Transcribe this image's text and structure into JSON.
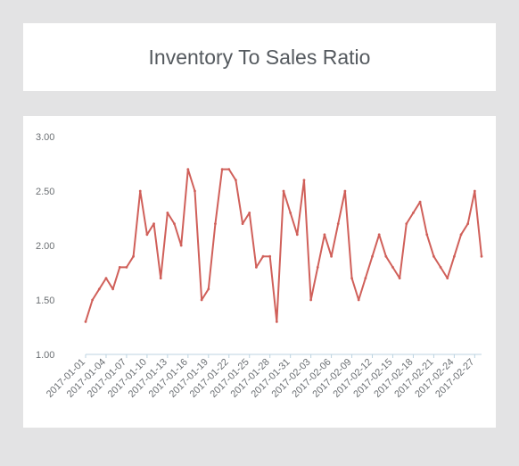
{
  "header": {
    "title": "Inventory To Sales Ratio"
  },
  "colors": {
    "line": "#d0605a",
    "axis": "#bcd3e0",
    "text": "#6b6f73",
    "background": "#e3e3e4",
    "card": "#ffffff"
  },
  "chart_data": {
    "type": "line",
    "title": "Inventory To Sales Ratio",
    "xlabel": "",
    "ylabel": "",
    "ylim": [
      1.0,
      3.0
    ],
    "yticks": [
      "1.00",
      "1.50",
      "2.00",
      "2.50",
      "3.00"
    ],
    "grid": false,
    "x_tick_labels": [
      "2017-01-01",
      "2017-01-04",
      "2017-01-07",
      "2017-01-10",
      "2017-01-13",
      "2017-01-16",
      "2017-01-19",
      "2017-01-22",
      "2017-01-25",
      "2017-01-28",
      "2017-01-31",
      "2017-02-03",
      "2017-02-06",
      "2017-02-09",
      "2017-02-12",
      "2017-02-15",
      "2017-02-18",
      "2017-02-21",
      "2017-02-24",
      "2017-02-27"
    ],
    "x": [
      "2017-01-01",
      "2017-01-02",
      "2017-01-03",
      "2017-01-04",
      "2017-01-05",
      "2017-01-06",
      "2017-01-07",
      "2017-01-08",
      "2017-01-09",
      "2017-01-10",
      "2017-01-11",
      "2017-01-12",
      "2017-01-13",
      "2017-01-14",
      "2017-01-15",
      "2017-01-16",
      "2017-01-17",
      "2017-01-18",
      "2017-01-19",
      "2017-01-20",
      "2017-01-21",
      "2017-01-22",
      "2017-01-23",
      "2017-01-24",
      "2017-01-25",
      "2017-01-26",
      "2017-01-27",
      "2017-01-28",
      "2017-01-29",
      "2017-01-30",
      "2017-01-31",
      "2017-02-01",
      "2017-02-02",
      "2017-02-03",
      "2017-02-04",
      "2017-02-05",
      "2017-02-06",
      "2017-02-07",
      "2017-02-08",
      "2017-02-09",
      "2017-02-10",
      "2017-02-11",
      "2017-02-12",
      "2017-02-13",
      "2017-02-14",
      "2017-02-15",
      "2017-02-16",
      "2017-02-17",
      "2017-02-18",
      "2017-02-19",
      "2017-02-20",
      "2017-02-21",
      "2017-02-22",
      "2017-02-23",
      "2017-02-24",
      "2017-02-25",
      "2017-02-26",
      "2017-02-27",
      "2017-02-28"
    ],
    "series": [
      {
        "values": [
          1.3,
          1.5,
          1.6,
          1.7,
          1.6,
          1.8,
          1.8,
          1.9,
          2.5,
          2.1,
          2.2,
          1.7,
          2.3,
          2.2,
          2.0,
          2.7,
          2.5,
          1.5,
          1.6,
          2.2,
          2.7,
          2.7,
          2.6,
          2.2,
          2.3,
          1.8,
          1.9,
          1.9,
          1.3,
          2.5,
          2.3,
          2.1,
          2.6,
          1.5,
          1.8,
          2.1,
          1.9,
          2.2,
          2.5,
          1.7,
          1.5,
          1.7,
          1.9,
          2.1,
          1.9,
          1.8,
          1.7,
          2.2,
          2.3,
          2.4,
          2.1,
          1.9,
          1.8,
          1.7,
          1.9,
          2.1,
          2.2,
          2.5,
          1.9
        ]
      }
    ]
  }
}
